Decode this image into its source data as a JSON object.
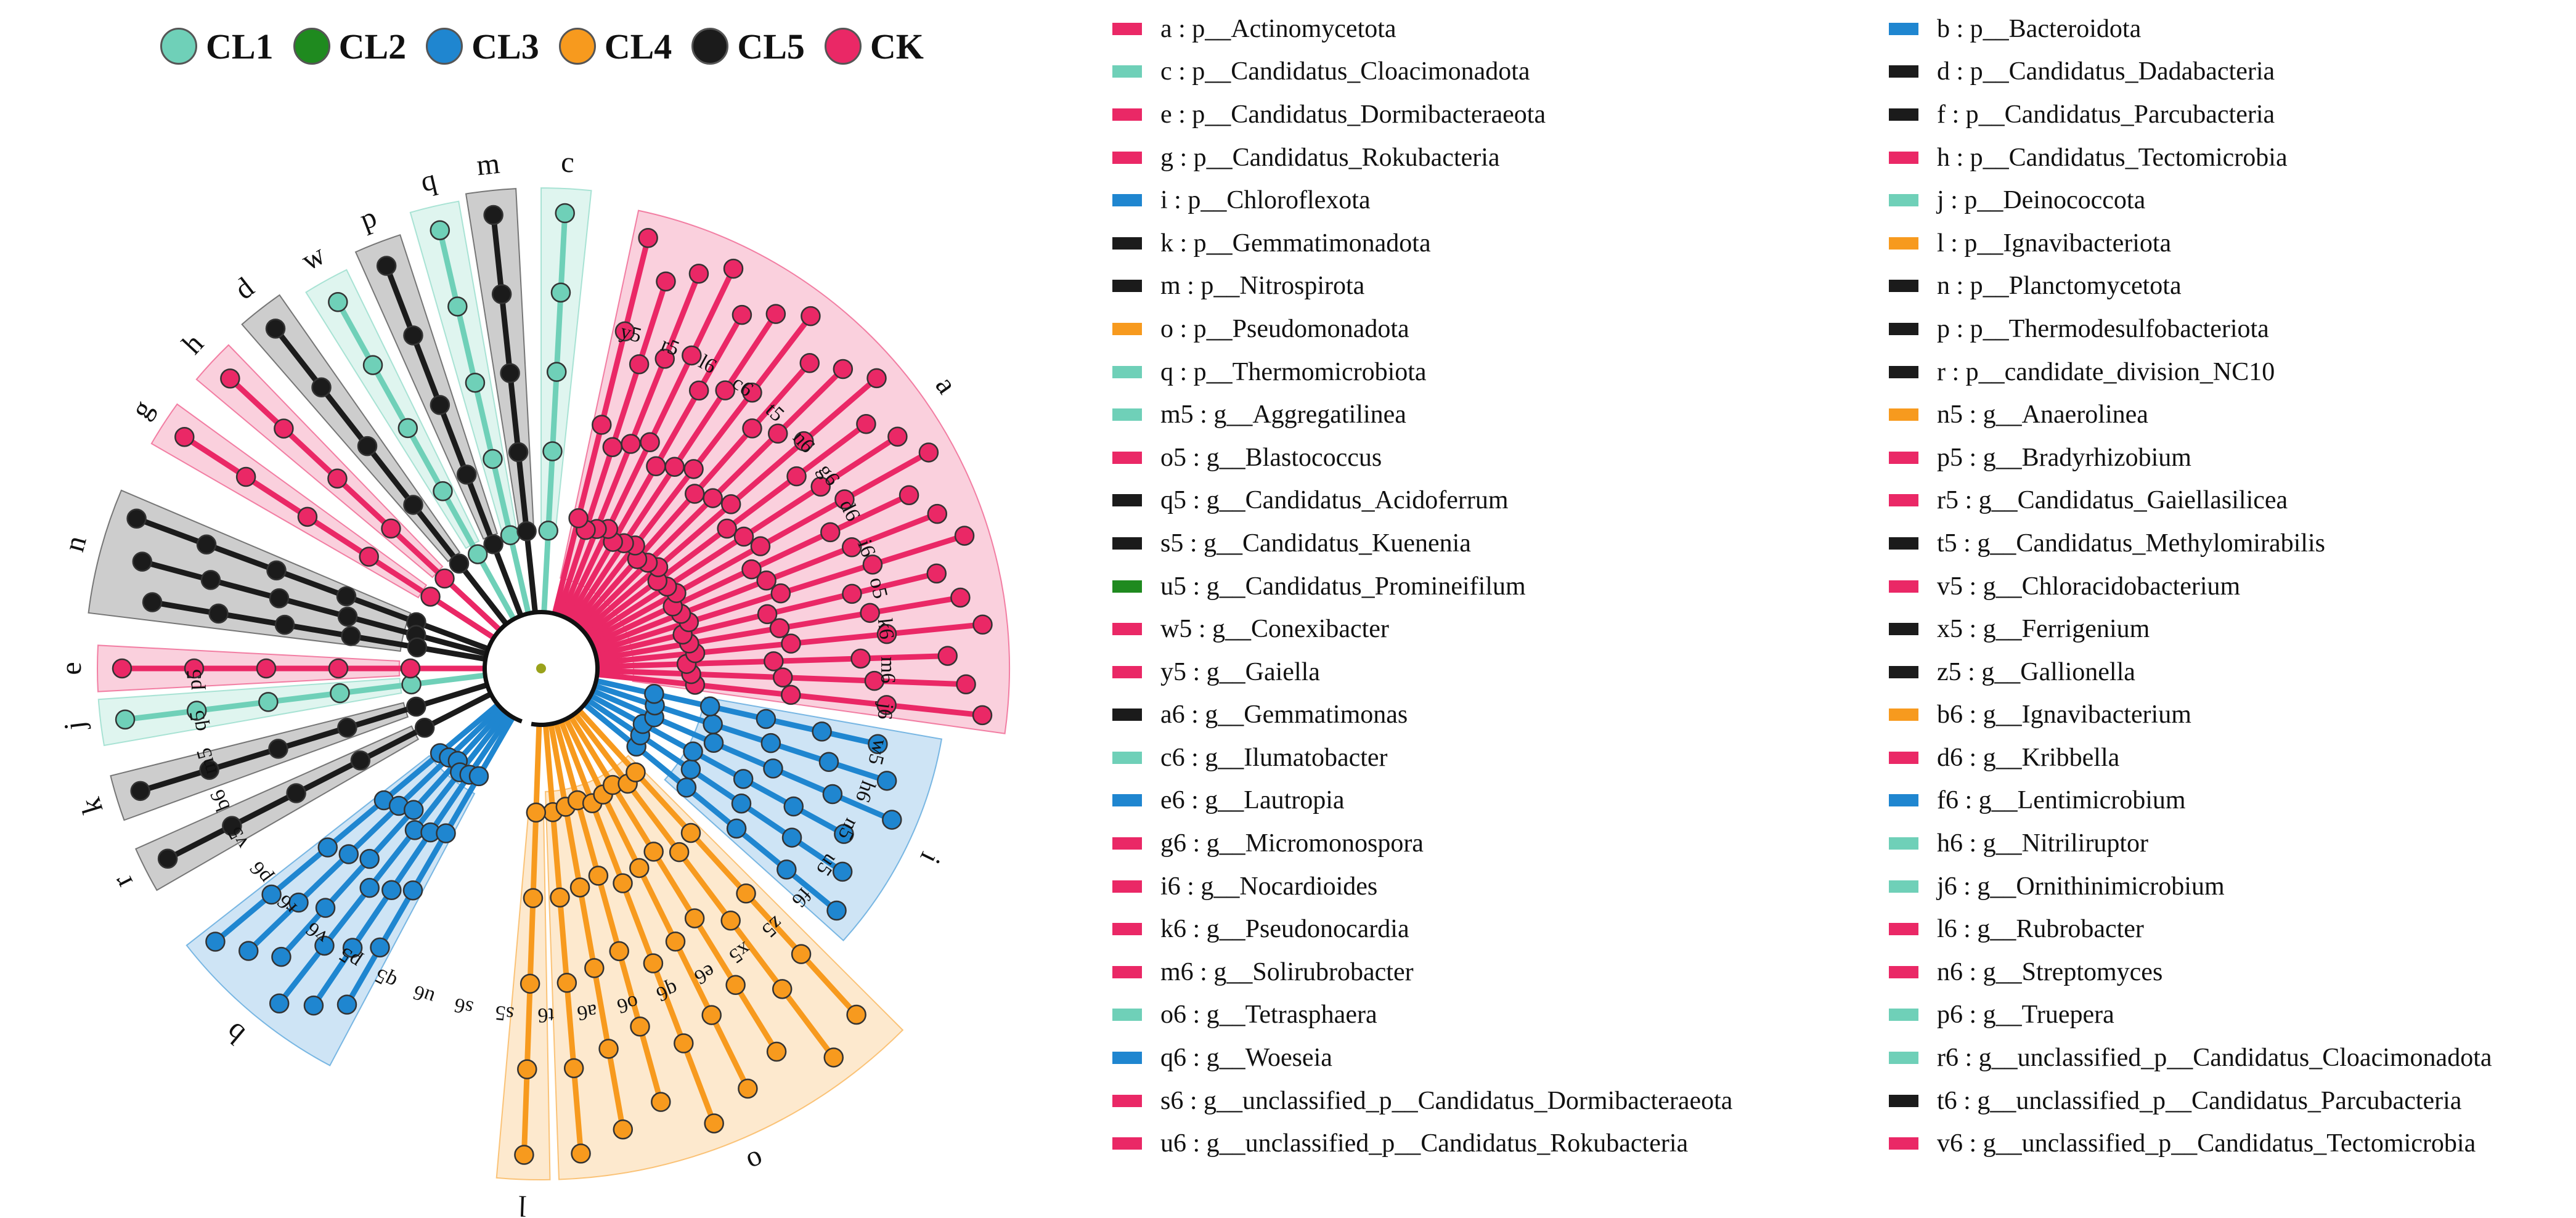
{
  "groups": [
    {
      "name": "CL1",
      "color": "#6fd0b8"
    },
    {
      "name": "CL2",
      "color": "#1f8a1f"
    },
    {
      "name": "CL3",
      "color": "#1f86d0"
    },
    {
      "name": "CL4",
      "color": "#f79a1e"
    },
    {
      "name": "CL5",
      "color": "#1b1b1b"
    },
    {
      "name": "CK",
      "color": "#ea2866"
    }
  ],
  "taxa": [
    {
      "key": "a",
      "text": "a : p__Actinomycetota",
      "group": "CK"
    },
    {
      "key": "b",
      "text": "b : p__Bacteroidota",
      "group": "CL3"
    },
    {
      "key": "c",
      "text": "c : p__Candidatus_Cloacimonadota",
      "group": "CL1"
    },
    {
      "key": "d",
      "text": "d : p__Candidatus_Dadabacteria",
      "group": "CL5"
    },
    {
      "key": "e",
      "text": "e : p__Candidatus_Dormibacteraeota",
      "group": "CK"
    },
    {
      "key": "f",
      "text": "f : p__Candidatus_Parcubacteria",
      "group": "CL5"
    },
    {
      "key": "g",
      "text": "g : p__Candidatus_Rokubacteria",
      "group": "CK"
    },
    {
      "key": "h",
      "text": "h : p__Candidatus_Tectomicrobia",
      "group": "CK"
    },
    {
      "key": "i",
      "text": "i : p__Chloroflexota",
      "group": "CL3"
    },
    {
      "key": "j",
      "text": "j : p__Deinococcota",
      "group": "CL1"
    },
    {
      "key": "k",
      "text": "k : p__Gemmatimonadota",
      "group": "CL5"
    },
    {
      "key": "l",
      "text": "l : p__Ignavibacteriota",
      "group": "CL4"
    },
    {
      "key": "m",
      "text": "m : p__Nitrospirota",
      "group": "CL5"
    },
    {
      "key": "n",
      "text": "n : p__Planctomycetota",
      "group": "CL5"
    },
    {
      "key": "o",
      "text": "o : p__Pseudomonadota",
      "group": "CL4"
    },
    {
      "key": "p",
      "text": "p : p__Thermodesulfobacteriota",
      "group": "CL5"
    },
    {
      "key": "q",
      "text": "q : p__Thermomicrobiota",
      "group": "CL1"
    },
    {
      "key": "r",
      "text": "r : p__candidate_division_NC10",
      "group": "CL5"
    },
    {
      "key": "m5",
      "text": "m5 : g__Aggregatilinea",
      "group": "CL1"
    },
    {
      "key": "n5",
      "text": "n5 : g__Anaerolinea",
      "group": "CL4"
    },
    {
      "key": "o5",
      "text": "o5 : g__Blastococcus",
      "group": "CK"
    },
    {
      "key": "p5",
      "text": "p5 : g__Bradyrhizobium",
      "group": "CK"
    },
    {
      "key": "q5",
      "text": "q5 : g__Candidatus_Acidoferrum",
      "group": "CL5"
    },
    {
      "key": "r5",
      "text": "r5 : g__Candidatus_Gaiellasilicea",
      "group": "CK"
    },
    {
      "key": "s5",
      "text": "s5 : g__Candidatus_Kuenenia",
      "group": "CL5"
    },
    {
      "key": "t5",
      "text": "t5 : g__Candidatus_Methylomirabilis",
      "group": "CL5"
    },
    {
      "key": "u5",
      "text": "u5 : g__Candidatus_Promineifilum",
      "group": "CL2"
    },
    {
      "key": "v5",
      "text": "v5 : g__Chloracidobacterium",
      "group": "CK"
    },
    {
      "key": "w5",
      "text": "w5 : g__Conexibacter",
      "group": "CK"
    },
    {
      "key": "x5",
      "text": "x5 : g__Ferrigenium",
      "group": "CL5"
    },
    {
      "key": "y5",
      "text": "y5 : g__Gaiella",
      "group": "CK"
    },
    {
      "key": "z5",
      "text": "z5 : g__Gallionella",
      "group": "CL5"
    },
    {
      "key": "a6",
      "text": "a6 : g__Gemmatimonas",
      "group": "CL5"
    },
    {
      "key": "b6",
      "text": "b6 : g__Ignavibacterium",
      "group": "CL4"
    },
    {
      "key": "c6",
      "text": "c6 : g__Ilumatobacter",
      "group": "CL1"
    },
    {
      "key": "d6",
      "text": "d6 : g__Kribbella",
      "group": "CK"
    },
    {
      "key": "e6",
      "text": "e6 : g__Lautropia",
      "group": "CL3"
    },
    {
      "key": "f6",
      "text": "f6 : g__Lentimicrobium",
      "group": "CL3"
    },
    {
      "key": "g6",
      "text": "g6 : g__Micromonospora",
      "group": "CK"
    },
    {
      "key": "h6",
      "text": "h6 : g__Nitriliruptor",
      "group": "CL1"
    },
    {
      "key": "i6",
      "text": "i6 : g__Nocardioides",
      "group": "CK"
    },
    {
      "key": "j6",
      "text": "j6 : g__Ornithinimicrobium",
      "group": "CL1"
    },
    {
      "key": "k6",
      "text": "k6 : g__Pseudonocardia",
      "group": "CK"
    },
    {
      "key": "l6",
      "text": "l6 : g__Rubrobacter",
      "group": "CK"
    },
    {
      "key": "m6",
      "text": "m6 : g__Solirubrobacter",
      "group": "CK"
    },
    {
      "key": "n6",
      "text": "n6 : g__Streptomyces",
      "group": "CK"
    },
    {
      "key": "o6",
      "text": "o6 : g__Tetrasphaera",
      "group": "CL1"
    },
    {
      "key": "p6",
      "text": "p6 : g__Truepera",
      "group": "CL1"
    },
    {
      "key": "q6",
      "text": "q6 : g__Woeseia",
      "group": "CL3"
    },
    {
      "key": "r6",
      "text": "r6 : g__unclassified_p__Candidatus_Cloacimonadota",
      "group": "CL1"
    },
    {
      "key": "s6",
      "text": "s6 : g__unclassified_p__Candidatus_Dormibacteraeota",
      "group": "CK"
    },
    {
      "key": "t6",
      "text": "t6 : g__unclassified_p__Candidatus_Parcubacteria",
      "group": "CL5"
    },
    {
      "key": "u6",
      "text": "u6 : g__unclassified_p__Candidatus_Rokubacteria",
      "group": "CK"
    },
    {
      "key": "v6",
      "text": "v6 : g__unclassified_p__Candidatus_Tectomicrobia",
      "group": "CK"
    }
  ],
  "cladogram": {
    "clades": [
      {
        "label": "a",
        "group": "CK"
      },
      {
        "label": "i",
        "group": "CL3"
      },
      {
        "label": "o",
        "group": "CL4"
      },
      {
        "label": "l",
        "group": "CL4"
      },
      {
        "label": "b",
        "group": "CL3"
      },
      {
        "label": "r",
        "group": "CL5"
      },
      {
        "label": "k",
        "group": "CL5"
      },
      {
        "label": "j",
        "group": "CL1"
      },
      {
        "label": "e",
        "group": "CK"
      },
      {
        "label": "n",
        "group": "CL5"
      },
      {
        "label": "g",
        "group": "CK"
      },
      {
        "label": "h",
        "group": "CK"
      },
      {
        "label": "d",
        "group": "CL5"
      },
      {
        "label": "w",
        "group": "CL1"
      },
      {
        "label": "p",
        "group": "CL5"
      },
      {
        "label": "q",
        "group": "CL1"
      },
      {
        "label": "m",
        "group": "CL5"
      },
      {
        "label": "c",
        "group": "CL1"
      }
    ],
    "inner_labels": [
      "y5",
      "r5",
      "l6",
      "c6",
      "t5",
      "n6",
      "g6",
      "d6",
      "i6",
      "o5",
      "k6",
      "m6",
      "j6",
      "w5",
      "h6",
      "n5",
      "u5",
      "f6",
      "z5",
      "x5",
      "e6",
      "q6",
      "o6",
      "a6",
      "t6",
      "s5",
      "s6",
      "u6",
      "q5",
      "p5",
      "v6",
      "r6",
      "p6",
      "v5",
      "b6",
      "m5",
      "q5",
      "p5"
    ]
  }
}
